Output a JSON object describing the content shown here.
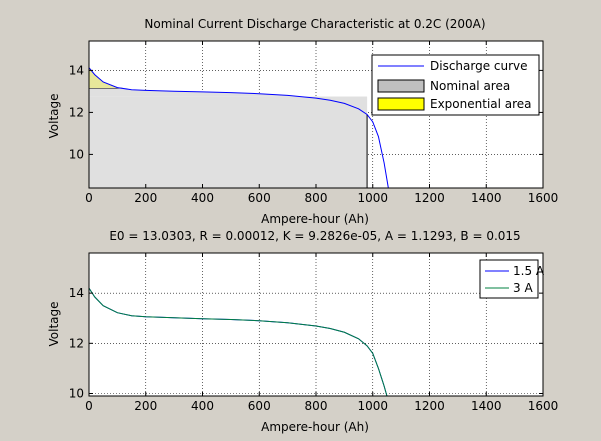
{
  "figure": {
    "background": "#d4d0c8",
    "axes_background": "#ffffff"
  },
  "chart_data": [
    {
      "type": "line",
      "title": "Nominal Current Discharge Characteristic at 0.2C (200A)",
      "xlabel": "Ampere-hour (Ah)",
      "ylabel": "Voltage",
      "xlim": [
        0,
        1600
      ],
      "ylim": [
        8.4,
        15.4
      ],
      "xticks": [
        0,
        200,
        400,
        600,
        800,
        1000,
        1200,
        1400,
        1600
      ],
      "yticks": [
        10,
        12,
        14
      ],
      "grid": true,
      "legend_position": "top-right",
      "series": [
        {
          "name": "Discharge curve",
          "color": "#0000ff",
          "x": [
            0,
            20,
            50,
            100,
            150,
            200,
            300,
            400,
            500,
            600,
            700,
            800,
            850,
            900,
            950,
            980,
            1000,
            1020,
            1040,
            1055
          ],
          "y": [
            14.13,
            13.8,
            13.45,
            13.18,
            13.08,
            13.05,
            13.01,
            12.98,
            12.94,
            12.89,
            12.81,
            12.68,
            12.58,
            12.43,
            12.17,
            11.9,
            11.55,
            10.85,
            9.6,
            8.4
          ]
        }
      ],
      "areas": [
        {
          "name": "Nominal area",
          "color": "#c0c0c0",
          "x_end": 980,
          "y_top": 12.75
        },
        {
          "name": "Exponential area",
          "color": "#ffff00",
          "x_end": 120,
          "y_bottom": 13.15
        }
      ]
    },
    {
      "type": "line",
      "title": "E0 = 13.0303, R = 0.00012, K = 9.2826e-05, A = 1.1293, B = 0.015",
      "xlabel": "Ampere-hour (Ah)",
      "ylabel": "Voltage",
      "xlim": [
        0,
        1600
      ],
      "ylim": [
        9.9,
        15.6
      ],
      "xticks": [
        0,
        200,
        400,
        600,
        800,
        1000,
        1200,
        1400,
        1600
      ],
      "yticks": [
        10,
        12,
        14
      ],
      "grid": true,
      "legend_position": "top-right",
      "series": [
        {
          "name": "1.5 A",
          "color": "#0000ff",
          "x": [
            0,
            20,
            50,
            100,
            150,
            200,
            300,
            400,
            500,
            600,
            700,
            800,
            850,
            900,
            950,
            980,
            1000,
            1020,
            1040,
            1050
          ],
          "y": [
            14.2,
            13.85,
            13.5,
            13.22,
            13.1,
            13.06,
            13.02,
            12.98,
            12.95,
            12.9,
            12.82,
            12.69,
            12.59,
            12.44,
            12.18,
            11.9,
            11.6,
            11.0,
            10.3,
            9.9
          ]
        },
        {
          "name": "3 A",
          "color": "#008040",
          "x": [
            0,
            20,
            50,
            100,
            150,
            200,
            300,
            400,
            500,
            600,
            700,
            800,
            850,
            900,
            950,
            980,
            1000,
            1020,
            1040,
            1050
          ],
          "y": [
            14.2,
            13.85,
            13.5,
            13.22,
            13.1,
            13.06,
            13.02,
            12.98,
            12.95,
            12.9,
            12.82,
            12.69,
            12.59,
            12.44,
            12.18,
            11.9,
            11.6,
            11.0,
            10.3,
            9.9
          ]
        }
      ]
    }
  ]
}
